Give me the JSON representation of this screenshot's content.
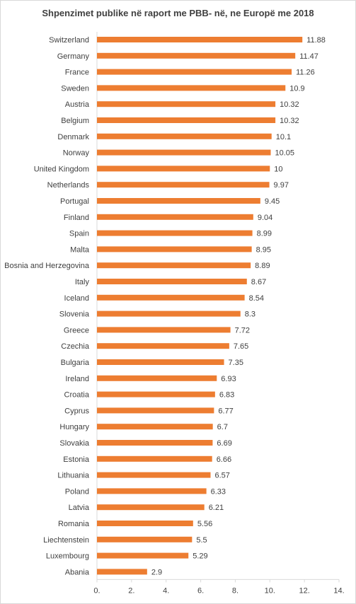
{
  "chart_data": {
    "type": "bar",
    "orientation": "horizontal",
    "title": "Shpenzimet publike në raport me PBB- në, ne Europë me 2018",
    "categories": [
      "Switzerland",
      "Germany",
      "France",
      "Sweden",
      "Austria",
      "Belgium",
      "Denmark",
      "Norway",
      "United Kingdom",
      "Netherlands",
      "Portugal",
      "Finland",
      "Spain",
      "Malta",
      "Bosnia and Herzegovina",
      "Italy",
      "Iceland",
      "Slovenia",
      "Greece",
      "Czechia",
      "Bulgaria",
      "Ireland",
      "Croatia",
      "Cyprus",
      "Hungary",
      "Slovakia",
      "Estonia",
      "Lithuania",
      "Poland",
      "Latvia",
      "Romania",
      "Liechtenstein",
      "Luxembourg",
      "Abania"
    ],
    "values": [
      11.88,
      11.47,
      11.26,
      10.9,
      10.32,
      10.32,
      10.1,
      10.05,
      10,
      9.97,
      9.45,
      9.04,
      8.99,
      8.95,
      8.89,
      8.67,
      8.54,
      8.3,
      7.72,
      7.65,
      7.35,
      6.93,
      6.83,
      6.77,
      6.7,
      6.69,
      6.66,
      6.57,
      6.33,
      6.21,
      5.56,
      5.5,
      5.29,
      2.9
    ],
    "data_labels": [
      "11.88",
      "11.47",
      "11.26",
      "10.9",
      "10.32",
      "10.32",
      "10.1",
      "10.05",
      "10",
      "9.97",
      "9.45",
      "9.04",
      "8.99",
      "8.95",
      "8.89",
      "8.67",
      "8.54",
      "8.3",
      "7.72",
      "7.65",
      "7.35",
      "6.93",
      "6.83",
      "6.77",
      "6.7",
      "6.69",
      "6.66",
      "6.57",
      "6.33",
      "6.21",
      "5.56",
      "5.5",
      "5.29",
      "2.9"
    ],
    "xlim": [
      0,
      14
    ],
    "x_ticks": [
      0,
      2,
      4,
      6,
      8,
      10,
      12,
      14
    ],
    "x_tick_labels": [
      "0.",
      "2.",
      "4.",
      "6.",
      "8.",
      "10.",
      "12.",
      "14."
    ],
    "xlabel": "",
    "ylabel": "",
    "grid": false,
    "legend": "none",
    "bar_color": "#ED7D31",
    "axis_color": "#d9d9d9",
    "text_color": "#404040"
  }
}
